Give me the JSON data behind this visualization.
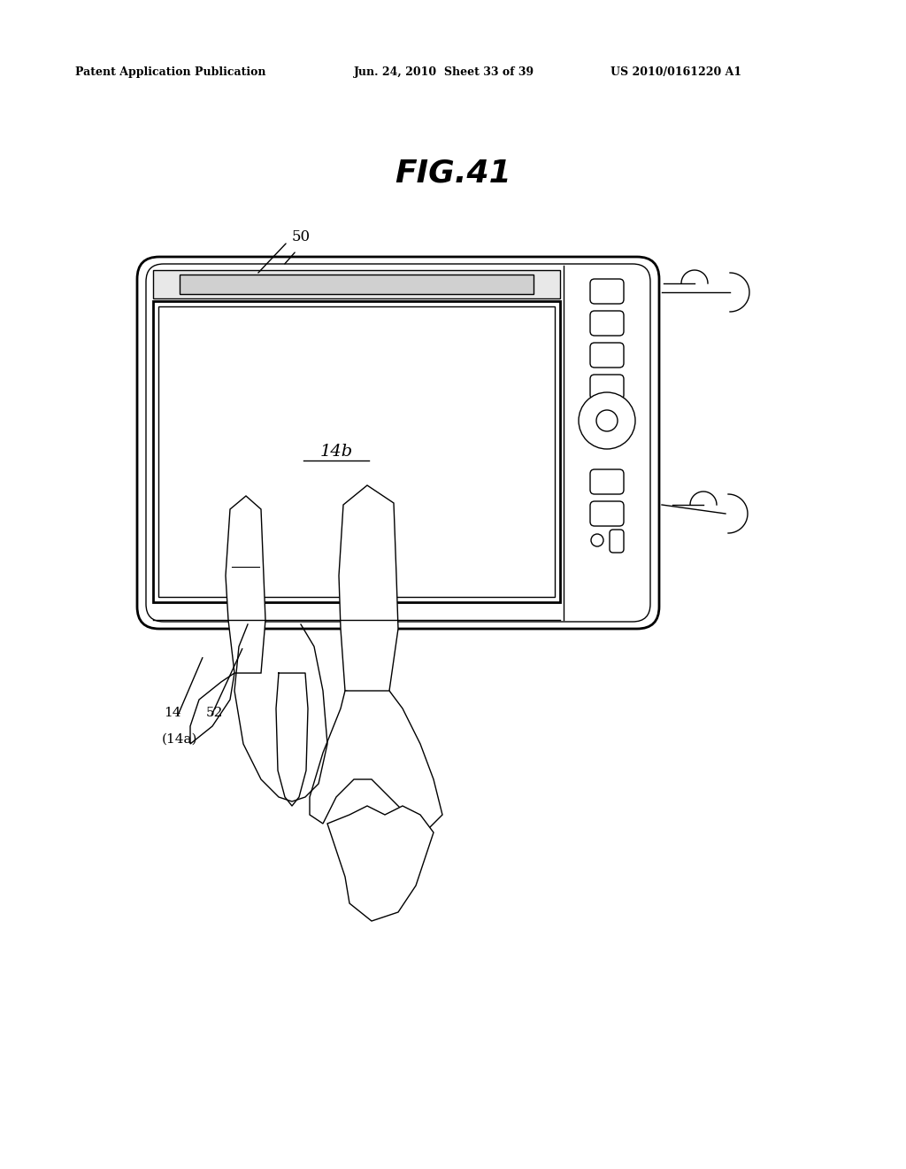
{
  "bg_color": "#ffffff",
  "line_color": "#000000",
  "fig_title": "FIG.41",
  "header_left": "Patent Application Publication",
  "header_mid": "Jun. 24, 2010  Sheet 33 of 39",
  "header_right": "US 2010/0161220 A1",
  "label_50": "50",
  "label_14b": "14b",
  "label_14": "14",
  "label_52": "52",
  "label_14a": "(14a)"
}
